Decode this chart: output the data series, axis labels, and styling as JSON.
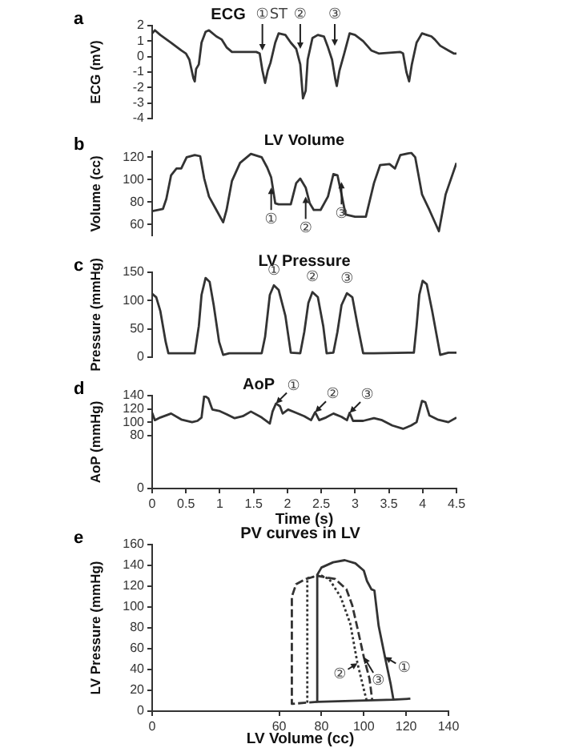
{
  "chart_data": [
    {
      "type": "line",
      "title": "ECG",
      "ylabel": "ECG (mV)",
      "xlim": [
        0,
        4.5
      ],
      "ylim": [
        -4,
        2
      ],
      "yticks": [
        -4,
        -3,
        -2,
        -1,
        0,
        1,
        2
      ],
      "tick_labels": "y",
      "grid": false,
      "legend": false,
      "annotations": [
        "a",
        {
          "text": "①",
          "x": 1.63,
          "y": 0.4
        },
        {
          "text": "ST",
          "x": 1.87,
          "y": 2
        },
        {
          "text": "②",
          "x": 2.19,
          "y": 0.5
        },
        {
          "text": "③",
          "x": 2.7,
          "y": 0.7
        }
      ],
      "x": [
        0,
        0.04,
        0.12,
        0.28,
        0.43,
        0.5,
        0.55,
        0.61,
        0.63,
        0.65,
        0.69,
        0.73,
        0.79,
        0.84,
        0.95,
        1.03,
        1.1,
        1.18,
        1.3,
        1.54,
        1.59,
        1.63,
        1.67,
        1.71,
        1.75,
        1.82,
        1.87,
        1.97,
        2.05,
        2.13,
        2.19,
        2.23,
        2.27,
        2.3,
        2.37,
        2.45,
        2.54,
        2.6,
        2.66,
        2.71,
        2.73,
        2.77,
        2.84,
        2.92,
        3.0,
        3.12,
        3.24,
        3.35,
        3.67,
        3.71,
        3.76,
        3.8,
        3.84,
        3.91,
        3.99,
        4.06,
        4.13,
        4.18,
        4.26,
        4.38,
        4.46,
        4.5
      ],
      "series": [
        {
          "color": "#333333",
          "values": [
            1.5,
            1.7,
            1.4,
            0.9,
            0.4,
            0.2,
            -0.2,
            -1.4,
            -1.6,
            -0.8,
            -0.5,
            0.9,
            1.6,
            1.7,
            1.3,
            1.1,
            0.6,
            0.3,
            0.3,
            0.3,
            0.2,
            -0.9,
            -1.7,
            -0.9,
            -0.4,
            0.9,
            1.5,
            1.4,
            0.9,
            0.5,
            -0.5,
            -2.7,
            -2.2,
            -0.2,
            1.2,
            1.4,
            1.3,
            0.6,
            -0.2,
            -1.5,
            -1.9,
            -0.9,
            0.2,
            1.5,
            1.4,
            1.0,
            0.4,
            0.2,
            0.3,
            0.2,
            -1.0,
            -1.6,
            -0.5,
            0.9,
            1.5,
            1.4,
            1.3,
            1.1,
            0.7,
            0.4,
            0.2,
            0.2
          ]
        }
      ]
    },
    {
      "type": "line",
      "title": "LV Volume",
      "ylabel": "Volume (cc)",
      "xlim": [
        0,
        4.5
      ],
      "ylim": [
        50,
        125
      ],
      "yticks": [
        60,
        80,
        100,
        120
      ],
      "tick_labels": "y",
      "grid": false,
      "legend": false,
      "annotations": [
        "b",
        {
          "text": "①",
          "x": 1.76,
          "y": 93
        },
        {
          "text": "②",
          "x": 2.27,
          "y": 85
        },
        {
          "text": "③",
          "x": 2.8,
          "y": 98
        }
      ],
      "x": [
        0,
        0.16,
        0.21,
        0.28,
        0.36,
        0.43,
        0.51,
        0.63,
        0.71,
        0.77,
        0.84,
        0.95,
        1.05,
        1.1,
        1.18,
        1.3,
        1.46,
        1.62,
        1.7,
        1.76,
        1.82,
        1.87,
        2.05,
        2.13,
        2.19,
        2.27,
        2.33,
        2.39,
        2.49,
        2.6,
        2.68,
        2.74,
        2.8,
        2.86,
        3.0,
        3.16,
        3.28,
        3.37,
        3.51,
        3.59,
        3.67,
        3.83,
        3.89,
        3.99,
        4.1,
        4.24,
        4.34,
        4.5
      ],
      "series": [
        {
          "color": "#333333",
          "values": [
            72,
            74,
            83,
            104,
            110,
            110,
            120,
            122,
            121,
            101,
            85,
            73,
            62,
            73,
            99,
            115,
            123,
            120,
            111,
            102,
            79,
            78,
            78,
            97,
            101,
            93,
            79,
            73,
            73,
            85,
            105,
            104,
            87,
            69,
            67,
            67,
            97,
            113,
            114,
            110,
            122,
            124,
            120,
            87,
            73,
            54,
            87,
            115
          ]
        }
      ]
    },
    {
      "type": "line",
      "title": "LV Pressure",
      "ylabel": "Pressure (mmHg)",
      "xlim": [
        0,
        4.5
      ],
      "ylim": [
        0,
        150
      ],
      "yticks": [
        0,
        50,
        100,
        150
      ],
      "tick_labels": "y",
      "grid": false,
      "legend": false,
      "annotations": [
        "c",
        {
          "text": "①",
          "x": 1.8,
          "y": 127
        },
        {
          "text": "②",
          "x": 2.37,
          "y": 115
        },
        {
          "text": "③",
          "x": 2.88,
          "y": 113
        }
      ],
      "x": [
        0,
        0.06,
        0.12,
        0.2,
        0.24,
        0.36,
        0.63,
        0.69,
        0.73,
        0.79,
        0.85,
        0.91,
        0.99,
        1.05,
        1.14,
        1.62,
        1.67,
        1.74,
        1.8,
        1.87,
        1.97,
        2.05,
        2.19,
        2.25,
        2.31,
        2.37,
        2.45,
        2.53,
        2.58,
        2.68,
        2.74,
        2.8,
        2.88,
        2.96,
        3.04,
        3.12,
        3.28,
        3.87,
        3.91,
        3.95,
        4.0,
        4.06,
        4.14,
        4.26,
        4.38,
        4.5
      ],
      "series": [
        {
          "color": "#333333",
          "values": [
            112,
            106,
            82,
            27,
            7,
            7,
            7,
            55,
            110,
            140,
            133,
            92,
            27,
            4,
            7,
            7,
            36,
            110,
            127,
            119,
            73,
            8,
            7,
            45,
            96,
            115,
            106,
            55,
            7,
            8,
            45,
            92,
            113,
            106,
            55,
            7,
            7,
            8,
            55,
            110,
            135,
            129,
            82,
            4,
            8,
            8
          ]
        }
      ]
    },
    {
      "type": "line",
      "title": "AoP",
      "ylabel": "AoP (mmHg)",
      "xlabel": "Time (s)",
      "xlim": [
        0,
        4.5
      ],
      "xticks": [
        0,
        0.5,
        1,
        1.5,
        2,
        2.5,
        3,
        3.5,
        4,
        4.5
      ],
      "ylim": [
        0,
        140
      ],
      "yticks": [
        0,
        80,
        100,
        120,
        140
      ],
      "grid": false,
      "legend": false,
      "annotations": [
        "d",
        {
          "text": "①",
          "x": 1.83,
          "y": 128
        },
        {
          "text": "②",
          "x": 2.41,
          "y": 115
        },
        {
          "text": "③",
          "x": 2.92,
          "y": 114
        }
      ],
      "x": [
        0,
        0.04,
        0.12,
        0.28,
        0.43,
        0.59,
        0.67,
        0.73,
        0.77,
        0.83,
        0.89,
        0.99,
        1.1,
        1.22,
        1.34,
        1.46,
        1.62,
        1.74,
        1.78,
        1.83,
        1.89,
        1.93,
        2.01,
        2.13,
        2.25,
        2.35,
        2.41,
        2.47,
        2.57,
        2.68,
        2.8,
        2.88,
        2.92,
        2.97,
        3.12,
        3.28,
        3.4,
        3.55,
        3.71,
        3.83,
        3.91,
        3.99,
        4.04,
        4.1,
        4.22,
        4.38,
        4.5
      ],
      "series": [
        {
          "color": "#333333",
          "values": [
            114,
            103,
            107,
            113,
            104,
            100,
            102,
            107,
            140,
            136,
            119,
            117,
            112,
            106,
            109,
            116,
            107,
            98,
            116,
            128,
            124,
            113,
            119,
            114,
            109,
            103,
            115,
            103,
            107,
            113,
            108,
            103,
            114,
            102,
            102,
            106,
            103,
            95,
            90,
            95,
            100,
            132,
            130,
            110,
            104,
            100,
            107
          ]
        }
      ]
    },
    {
      "type": "line",
      "title": "PV curves in LV",
      "xlabel": "LV Volume (cc)",
      "ylabel": "LV Pressure (mmHg)",
      "xlim": [
        0,
        140
      ],
      "xticks": [
        0,
        60,
        80,
        100,
        120,
        140
      ],
      "ylim": [
        0,
        160
      ],
      "yticks": [
        0,
        20,
        40,
        60,
        80,
        100,
        120,
        140,
        160
      ],
      "grid": false,
      "legend": false,
      "annotations": [
        "e",
        {
          "text": "①",
          "x": 110,
          "y": 52
        },
        {
          "text": "②",
          "x": 97,
          "y": 46
        },
        {
          "text": "③",
          "x": 100,
          "y": 52
        }
      ],
      "series": [
        {
          "color": "#333333",
          "line_style": "solid",
          "x": [
            122,
            114,
            78,
            78,
            80,
            85.5,
            91,
            96,
            100,
            101.5,
            103.6,
            105,
            107,
            110,
            112.7,
            114
          ],
          "values": [
            12,
            11,
            9,
            131,
            138,
            143,
            145,
            142,
            135,
            125,
            117,
            116,
            82,
            52,
            26,
            11
          ]
        },
        {
          "color": "#333333",
          "line_style": "dotted",
          "x": [
            73.3,
            73.3,
            74.5,
            79,
            83.6,
            89,
            93.6,
            97,
            100,
            101.5
          ],
          "values": [
            8,
            128,
            128,
            131,
            127,
            110,
            84,
            46,
            21,
            9
          ]
        },
        {
          "color": "#333333",
          "line_style": "dashed",
          "x": [
            78,
            66,
            66,
            68,
            72.7,
            78,
            86.4,
            91.8,
            94.5,
            97.3,
            100,
            102.7,
            104
          ],
          "values": [
            9,
            7,
            110,
            122,
            127,
            130,
            127,
            117,
            102,
            77,
            52,
            31,
            10
          ]
        }
      ]
    }
  ]
}
